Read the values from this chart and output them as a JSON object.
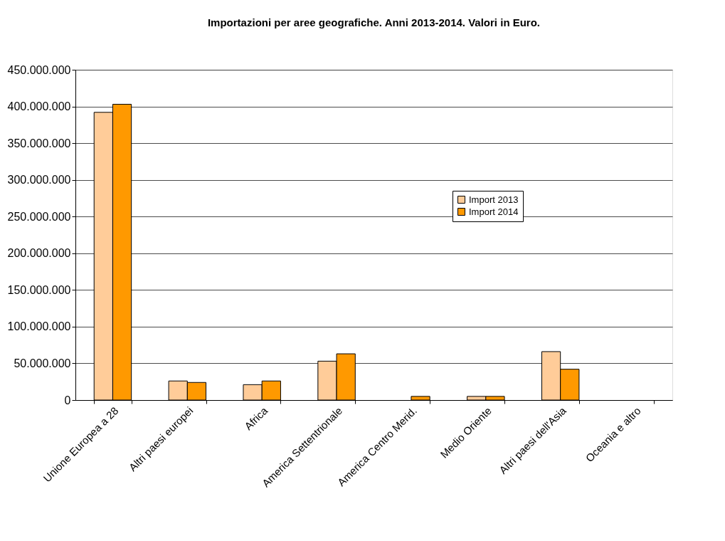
{
  "chart_data": {
    "type": "bar",
    "title": "Importazioni per aree geografiche. Anni 2013-2014. Valori in Euro.",
    "categories": [
      "Unione Europea a 28",
      "Altri paesi europei",
      "Africa",
      "America Settentrionale",
      "America Centro Merid.",
      "Medio Oriente",
      "Altri paesi dell'Asia",
      "Oceania e altro"
    ],
    "series": [
      {
        "name": "Import 2013",
        "color": "#ffcc99",
        "values": [
          392000000,
          26000000,
          21000000,
          53000000,
          null,
          5000000,
          66000000,
          null
        ]
      },
      {
        "name": "Import 2014",
        "color": "#ff9900",
        "values": [
          403000000,
          24000000,
          26000000,
          63000000,
          5000000,
          5000000,
          42000000,
          null
        ]
      }
    ],
    "ylim": [
      0,
      450000000
    ],
    "yticks": [
      {
        "value": 0,
        "label": "0"
      },
      {
        "value": 50000000,
        "label": "50.000.000"
      },
      {
        "value": 100000000,
        "label": "100.000.000"
      },
      {
        "value": 150000000,
        "label": "150.000.000"
      },
      {
        "value": 200000000,
        "label": "200.000.000"
      },
      {
        "value": 250000000,
        "label": "250.000.000"
      },
      {
        "value": 300000000,
        "label": "300.000.000"
      },
      {
        "value": 350000000,
        "label": "350.000.000"
      },
      {
        "value": 400000000,
        "label": "400.000.000"
      },
      {
        "value": 450000000,
        "label": "450.000.000"
      }
    ],
    "grid": "y",
    "legend": "right"
  }
}
